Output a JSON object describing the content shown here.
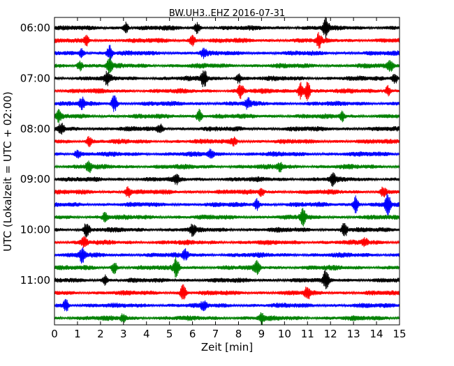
{
  "chart_data": {
    "type": "line",
    "chart_kind": "dayplot",
    "title": "BW.UH3..EHZ 2016-07-31",
    "xlabel": "Zeit  [min]",
    "ylabel": "UTC (Lokalzeit = UTC + 02:00)",
    "xlim": [
      0,
      15
    ],
    "xticks": [
      0,
      1,
      2,
      3,
      4,
      5,
      6,
      7,
      8,
      9,
      10,
      11,
      12,
      13,
      14,
      15
    ],
    "xtick_labels": [
      "0",
      "1",
      "2",
      "3",
      "4",
      "5",
      "6",
      "7",
      "8",
      "9",
      "10",
      "11",
      "12",
      "13",
      "14",
      "15"
    ],
    "ytick_labels": [
      "06:00",
      "07:00",
      "08:00",
      "09:00",
      "10:00",
      "11:00"
    ],
    "rows_per_hour": 4,
    "row_minutes": 15,
    "grid": false,
    "colors": [
      "#000000",
      "#ff0000",
      "#0000ff",
      "#008000"
    ],
    "rows": [
      {
        "start": "06:00",
        "color": "#000000",
        "events": [
          {
            "t": 11.8,
            "amp": 1.6
          },
          {
            "t": 3.1,
            "amp": 0.9
          },
          {
            "t": 6.2,
            "amp": 0.8
          }
        ]
      },
      {
        "start": "06:15",
        "color": "#ff0000",
        "events": [
          {
            "t": 11.5,
            "amp": 1.1
          },
          {
            "t": 6.0,
            "amp": 0.9
          },
          {
            "t": 1.4,
            "amp": 0.8
          }
        ]
      },
      {
        "start": "06:30",
        "color": "#0000ff",
        "events": [
          {
            "t": 2.4,
            "amp": 1.2
          },
          {
            "t": 6.5,
            "amp": 0.7
          },
          {
            "t": 1.2,
            "amp": 0.8
          }
        ]
      },
      {
        "start": "06:45",
        "color": "#008000",
        "events": [
          {
            "t": 2.4,
            "amp": 1.3
          },
          {
            "t": 1.1,
            "amp": 0.9
          },
          {
            "t": 14.6,
            "amp": 0.8
          }
        ]
      },
      {
        "start": "07:00",
        "color": "#000000",
        "events": [
          {
            "t": 6.5,
            "amp": 1.5
          },
          {
            "t": 2.3,
            "amp": 1.0
          },
          {
            "t": 14.8,
            "amp": 0.9
          },
          {
            "t": 8.0,
            "amp": 0.8
          }
        ]
      },
      {
        "start": "07:15",
        "color": "#ff0000",
        "events": [
          {
            "t": 11.0,
            "amp": 1.6
          },
          {
            "t": 10.7,
            "amp": 1.4
          },
          {
            "t": 8.1,
            "amp": 1.2
          },
          {
            "t": 14.5,
            "amp": 0.9
          }
        ]
      },
      {
        "start": "07:30",
        "color": "#0000ff",
        "events": [
          {
            "t": 2.6,
            "amp": 1.4
          },
          {
            "t": 1.2,
            "amp": 0.9
          },
          {
            "t": 8.4,
            "amp": 0.8
          }
        ]
      },
      {
        "start": "07:45",
        "color": "#008000",
        "events": [
          {
            "t": 6.3,
            "amp": 1.1
          },
          {
            "t": 0.2,
            "amp": 0.9
          },
          {
            "t": 12.5,
            "amp": 0.8
          }
        ]
      },
      {
        "start": "08:00",
        "color": "#000000",
        "events": [
          {
            "t": 0.3,
            "amp": 0.9
          },
          {
            "t": 4.6,
            "amp": 0.7
          }
        ]
      },
      {
        "start": "08:15",
        "color": "#ff0000",
        "events": [
          {
            "t": 1.5,
            "amp": 0.8
          },
          {
            "t": 7.8,
            "amp": 0.7
          }
        ]
      },
      {
        "start": "08:30",
        "color": "#0000ff",
        "events": [
          {
            "t": 1.0,
            "amp": 0.8
          },
          {
            "t": 6.8,
            "amp": 0.7
          }
        ]
      },
      {
        "start": "08:45",
        "color": "#008000",
        "events": [
          {
            "t": 1.5,
            "amp": 1.0
          },
          {
            "t": 9.8,
            "amp": 0.7
          }
        ]
      },
      {
        "start": "09:00",
        "color": "#000000",
        "events": [
          {
            "t": 12.1,
            "amp": 0.9
          },
          {
            "t": 5.3,
            "amp": 0.6
          }
        ]
      },
      {
        "start": "09:15",
        "color": "#ff0000",
        "events": [
          {
            "t": 3.2,
            "amp": 1.0
          },
          {
            "t": 14.3,
            "amp": 0.8
          },
          {
            "t": 9.0,
            "amp": 0.7
          }
        ]
      },
      {
        "start": "09:30",
        "color": "#0000ff",
        "events": [
          {
            "t": 14.5,
            "amp": 1.8
          },
          {
            "t": 13.1,
            "amp": 1.4
          },
          {
            "t": 8.8,
            "amp": 0.9
          }
        ]
      },
      {
        "start": "09:45",
        "color": "#008000",
        "events": [
          {
            "t": 10.8,
            "amp": 1.3
          },
          {
            "t": 2.2,
            "amp": 0.8
          }
        ]
      },
      {
        "start": "10:00",
        "color": "#000000",
        "events": [
          {
            "t": 1.4,
            "amp": 1.3
          },
          {
            "t": 12.6,
            "amp": 1.4
          },
          {
            "t": 6.0,
            "amp": 0.8
          }
        ]
      },
      {
        "start": "10:15",
        "color": "#ff0000",
        "events": [
          {
            "t": 1.3,
            "amp": 0.9
          },
          {
            "t": 13.5,
            "amp": 0.7
          }
        ]
      },
      {
        "start": "10:30",
        "color": "#0000ff",
        "events": [
          {
            "t": 1.2,
            "amp": 1.2
          },
          {
            "t": 5.7,
            "amp": 0.8
          }
        ]
      },
      {
        "start": "10:45",
        "color": "#008000",
        "events": [
          {
            "t": 5.3,
            "amp": 1.8
          },
          {
            "t": 8.8,
            "amp": 1.0
          },
          {
            "t": 2.6,
            "amp": 0.9
          }
        ]
      },
      {
        "start": "11:00",
        "color": "#000000",
        "events": [
          {
            "t": 11.8,
            "amp": 1.6
          },
          {
            "t": 2.2,
            "amp": 0.8
          }
        ]
      },
      {
        "start": "11:15",
        "color": "#ff0000",
        "events": [
          {
            "t": 5.6,
            "amp": 1.4
          },
          {
            "t": 11.0,
            "amp": 1.0
          }
        ]
      },
      {
        "start": "11:30",
        "color": "#0000ff",
        "events": [
          {
            "t": 0.5,
            "amp": 1.0
          },
          {
            "t": 6.5,
            "amp": 0.7
          }
        ]
      },
      {
        "start": "11:45",
        "color": "#008000",
        "events": [
          {
            "t": 9.0,
            "amp": 0.8
          },
          {
            "t": 3.0,
            "amp": 0.7
          }
        ]
      }
    ]
  }
}
